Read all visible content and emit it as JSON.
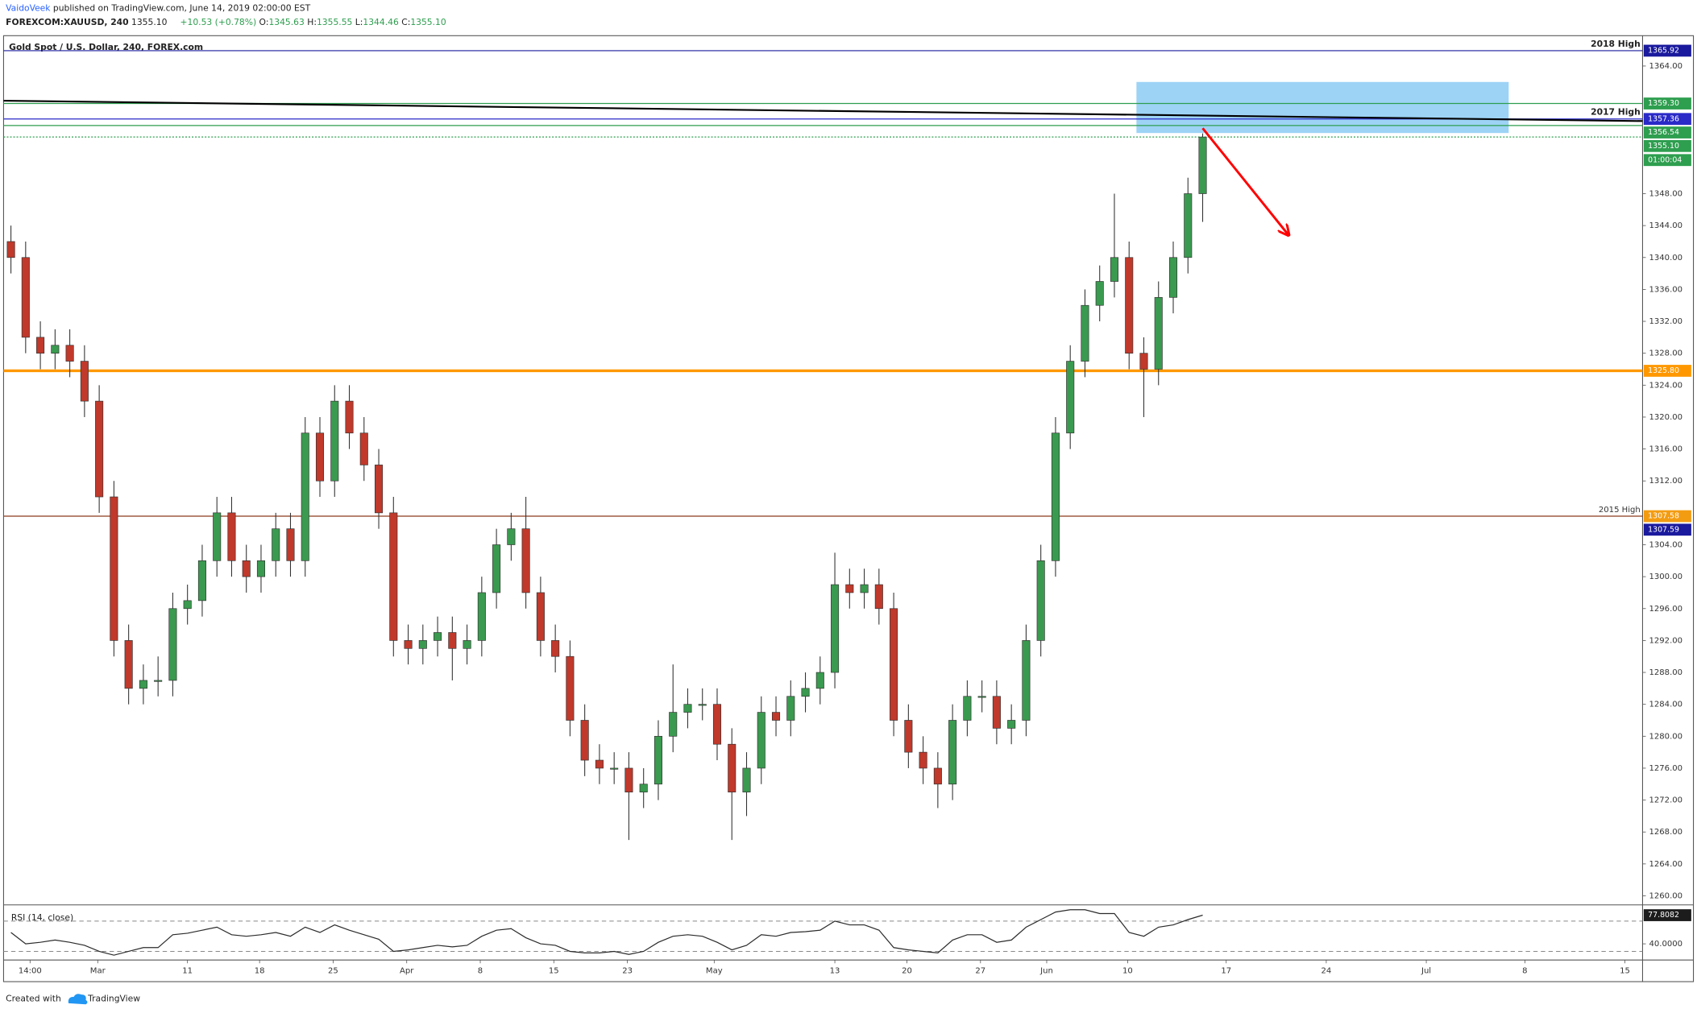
{
  "header": {
    "author": "VaidoVeek",
    "byline": "published on TradingView.com, June 14, 2019 02:00:00 EST",
    "symbol": "FOREXCOM:XAUUSD, 240",
    "last": "1355.10",
    "change": "+10.53 (+0.78%)",
    "stats": [
      {
        "key": "O:",
        "value": "1345.63"
      },
      {
        "key": "H:",
        "value": "1355.55"
      },
      {
        "key": "L:",
        "value": "1344.46"
      },
      {
        "key": "C:",
        "value": "1355.10"
      }
    ]
  },
  "chart_data": [
    {
      "type": "candlestick",
      "title": "Gold Spot / U.S. Dollar, 240, FOREX.com",
      "categories": [
        null,
        null,
        null,
        null,
        null,
        null,
        null,
        null,
        null,
        null,
        null,
        null,
        null,
        null,
        null,
        null,
        null,
        null,
        null,
        null,
        null,
        null,
        null,
        null,
        null,
        null,
        null,
        null,
        null,
        null,
        null,
        null,
        null,
        null,
        null,
        null,
        null,
        null,
        null,
        null,
        null,
        null,
        null,
        null,
        null,
        null,
        null,
        null,
        null,
        null,
        null,
        null,
        null,
        null,
        null,
        null,
        null,
        null,
        null,
        null,
        null,
        null,
        null,
        null,
        null,
        null,
        null,
        null,
        null,
        null,
        null,
        null,
        null,
        null,
        null,
        null,
        null,
        null,
        null,
        null,
        null,
        null
      ],
      "open": [
        1342,
        1340,
        1330,
        1328,
        1329,
        1327,
        1322,
        1310,
        1292,
        1286,
        1287,
        1287,
        1296,
        1297,
        1302,
        1308,
        1302,
        1300,
        1302,
        1306,
        1302,
        1318,
        1312,
        1322,
        1318,
        1314,
        1308,
        1292,
        1291,
        1292,
        1293,
        1291,
        1292,
        1298,
        1304,
        1306,
        1298,
        1292,
        1290,
        1282,
        1277,
        1276,
        1276,
        1273,
        1274,
        1280,
        1283,
        1284,
        1284,
        1279,
        1273,
        1276,
        1283,
        1282,
        1285,
        1286,
        1288,
        1299,
        1298,
        1299,
        1296,
        1282,
        1278,
        1276,
        1274,
        1282,
        1285,
        1285,
        1281,
        1282,
        1292,
        1302,
        1318,
        1327,
        1334,
        1337,
        1340,
        1328,
        1326,
        1335,
        1340,
        1348
      ],
      "high": [
        1344,
        1342,
        1332,
        1331,
        1331,
        1329,
        1324,
        1312,
        1294,
        1289,
        1290,
        1298,
        1299,
        1304,
        1310,
        1310,
        1304,
        1304,
        1308,
        1308,
        1320,
        1320,
        1324,
        1324,
        1320,
        1316,
        1310,
        1294,
        1294,
        1295,
        1295,
        1294,
        1300,
        1306,
        1308,
        1310,
        1300,
        1294,
        1292,
        1284,
        1279,
        1278,
        1278,
        1276,
        1282,
        1289,
        1286,
        1286,
        1286,
        1281,
        1278,
        1285,
        1285,
        1287,
        1288,
        1290,
        1303,
        1301,
        1301,
        1301,
        1298,
        1284,
        1280,
        1278,
        1284,
        1287,
        1287,
        1287,
        1284,
        1294,
        1304,
        1320,
        1329,
        1336,
        1339,
        1348,
        1342,
        1330,
        1337,
        1342,
        1350,
        1355.55
      ],
      "low": [
        1338,
        1328,
        1326,
        1326,
        1325,
        1320,
        1308,
        1290,
        1284,
        1284,
        1285,
        1285,
        1294,
        1295,
        1300,
        1300,
        1298,
        1298,
        1300,
        1300,
        1300,
        1310,
        1310,
        1316,
        1312,
        1306,
        1290,
        1289,
        1289,
        1290,
        1287,
        1289,
        1290,
        1296,
        1302,
        1296,
        1290,
        1288,
        1280,
        1275,
        1274,
        1274,
        1267,
        1271,
        1272,
        1278,
        1281,
        1282,
        1277,
        1267,
        1270,
        1274,
        1280,
        1280,
        1283,
        1284,
        1286,
        1296,
        1296,
        1294,
        1280,
        1276,
        1274,
        1271,
        1272,
        1280,
        1283,
        1279,
        1279,
        1280,
        1290,
        1300,
        1316,
        1325,
        1332,
        1335,
        1326,
        1320,
        1324,
        1333,
        1338,
        1344.46
      ],
      "close": [
        1340,
        1330,
        1328,
        1329,
        1327,
        1322,
        1310,
        1292,
        1286,
        1287,
        1287,
        1296,
        1297,
        1302,
        1308,
        1302,
        1300,
        1302,
        1306,
        1302,
        1318,
        1312,
        1322,
        1318,
        1314,
        1308,
        1292,
        1291,
        1292,
        1293,
        1291,
        1292,
        1298,
        1304,
        1306,
        1298,
        1292,
        1290,
        1282,
        1277,
        1276,
        1276,
        1273,
        1274,
        1280,
        1283,
        1284,
        1284,
        1279,
        1273,
        1276,
        1283,
        1282,
        1285,
        1286,
        1288,
        1299,
        1298,
        1299,
        1296,
        1282,
        1278,
        1276,
        1274,
        1282,
        1285,
        1285,
        1281,
        1282,
        1292,
        1302,
        1318,
        1327,
        1334,
        1337,
        1340,
        1328,
        1326,
        1335,
        1340,
        1348,
        1355.1
      ],
      "up_color": "#3a9a4f",
      "down_color": "#c0392b",
      "wick_color": "#333333",
      "xlim": [
        -0.5,
        110.9
      ],
      "xticks": [
        {
          "value": 1.3,
          "label": "14:00"
        },
        {
          "value": 5.9,
          "label": "Mar"
        },
        {
          "value": 12.0,
          "label": "11"
        },
        {
          "value": 16.9,
          "label": "18"
        },
        {
          "value": 21.9,
          "label": "25"
        },
        {
          "value": 26.9,
          "label": "Apr"
        },
        {
          "value": 31.9,
          "label": "8"
        },
        {
          "value": 36.9,
          "label": "15"
        },
        {
          "value": 41.9,
          "label": "23"
        },
        {
          "value": 47.8,
          "label": "May"
        },
        {
          "value": 56.0,
          "label": "13"
        },
        {
          "value": 60.9,
          "label": "20"
        },
        {
          "value": 65.9,
          "label": "27"
        },
        {
          "value": 70.4,
          "label": "Jun"
        },
        {
          "value": 75.9,
          "label": "10"
        },
        {
          "value": 82.6,
          "label": "17"
        },
        {
          "value": 89.4,
          "label": "24"
        },
        {
          "value": 96.2,
          "label": "Jul"
        },
        {
          "value": 102.9,
          "label": "8"
        },
        {
          "value": 109.7,
          "label": "15"
        }
      ],
      "ylim": [
        1259,
        1367.8
      ],
      "yticks": [
        {
          "value": 1260,
          "label": "1260.00"
        },
        {
          "value": 1264,
          "label": "1264.00"
        },
        {
          "value": 1268,
          "label": "1268.00"
        },
        {
          "value": 1272,
          "label": "1272.00"
        },
        {
          "value": 1276,
          "label": "1276.00"
        },
        {
          "value": 1280,
          "label": "1280.00"
        },
        {
          "value": 1284,
          "label": "1284.00"
        },
        {
          "value": 1288,
          "label": "1288.00"
        },
        {
          "value": 1292,
          "label": "1292.00"
        },
        {
          "value": 1296,
          "label": "1296.00"
        },
        {
          "value": 1300,
          "label": "1300.00"
        },
        {
          "value": 1304,
          "label": "1304.00"
        },
        {
          "value": 1312,
          "label": "1312.00"
        },
        {
          "value": 1316,
          "label": "1316.00"
        },
        {
          "value": 1320,
          "label": "1320.00"
        },
        {
          "value": 1324,
          "label": "1324.00"
        },
        {
          "value": 1328,
          "label": "1328.00"
        },
        {
          "value": 1332,
          "label": "1332.00"
        },
        {
          "value": 1336,
          "label": "1336.00"
        },
        {
          "value": 1340,
          "label": "1340.00"
        },
        {
          "value": 1344,
          "label": "1344.00"
        },
        {
          "value": 1348,
          "label": "1348.00"
        },
        {
          "value": 1364,
          "label": "1364.00"
        }
      ],
      "levels": [
        {
          "value": 1365.92,
          "color": "#1a1a9e",
          "style": "solid",
          "note": "2018 High"
        },
        {
          "value": 1359.3,
          "value_label": "1359.30",
          "color": "#2e9e4f",
          "style": "solid"
        },
        {
          "value": 1357.36,
          "color": "#2a2ac8",
          "style": "solid",
          "note": "2017 High"
        },
        {
          "value": 1356.54,
          "color": "#2e9e4f",
          "style": "solid"
        },
        {
          "value": 1355.1,
          "value_label": "1355.10",
          "color": "#2e9e4f",
          "style": "dotted",
          "countdown": "01:00:04"
        },
        {
          "value": 1325.8,
          "value_label": "1325.80",
          "color": "#ff9800",
          "style": "thick"
        },
        {
          "value": 1307.58,
          "color": "#f39c12",
          "line_color": "#8b3a1a",
          "style": "solid",
          "note": "2015 High"
        },
        {
          "value": 1307.59,
          "color": "#1a1a9e",
          "style": "none"
        }
      ],
      "trendline": {
        "x": [
          -0.5,
          110.9
        ],
        "y": [
          1359.65,
          1357.1
        ],
        "color": "#000000"
      },
      "zone": {
        "x": [
          76.5,
          101.8
        ],
        "y": [
          1355.6,
          1362
        ],
        "color": "#7cc4f2"
      },
      "arrow": {
        "x": [
          81,
          86.8
        ],
        "y": [
          1356.2,
          1342.9
        ],
        "color": "#ff0000"
      }
    },
    {
      "type": "line",
      "title": "RSI (14, close)",
      "color": "#2b2b2b",
      "label_color": "#1c1c1c",
      "xlim": [
        -0.5,
        110.9
      ],
      "ylim": [
        18.6,
        90
      ],
      "levels": [
        30,
        70
      ],
      "yticks": [
        {
          "value": 40,
          "label": "40.0000"
        }
      ],
      "values": [
        55,
        40,
        42,
        45,
        42,
        38,
        30,
        25,
        30,
        35,
        35,
        52,
        54,
        58,
        62,
        52,
        50,
        52,
        55,
        50,
        62,
        55,
        65,
        58,
        52,
        46,
        30,
        32,
        35,
        38,
        36,
        38,
        50,
        58,
        60,
        48,
        40,
        38,
        30,
        28,
        28,
        30,
        26,
        30,
        42,
        50,
        52,
        50,
        42,
        32,
        38,
        52,
        50,
        55,
        56,
        58,
        70,
        65,
        65,
        58,
        35,
        32,
        30,
        28,
        45,
        52,
        52,
        42,
        45,
        62,
        72,
        82,
        85,
        85,
        80,
        80,
        55,
        50,
        62,
        65,
        72,
        77.8082
      ]
    }
  ],
  "footer": {
    "created": "Created with",
    "brand": "TradingView"
  }
}
